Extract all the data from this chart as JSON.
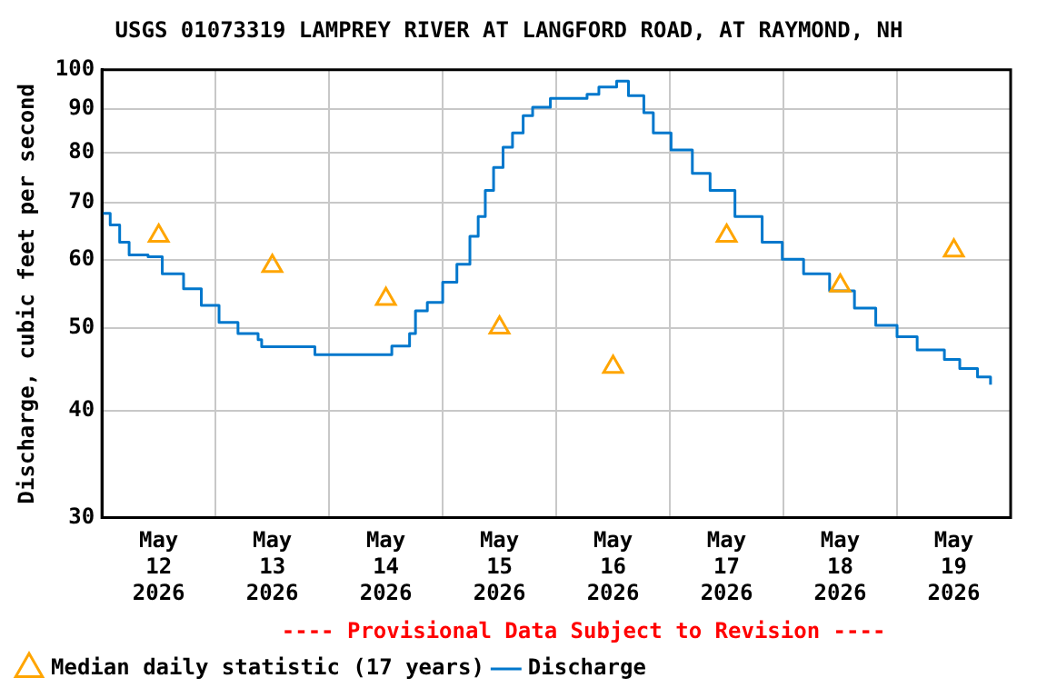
{
  "chart_data": {
    "type": "step",
    "title": "USGS 01073319 LAMPREY RIVER AT LANGFORD ROAD, AT RAYMOND, NH",
    "ylabel": "Discharge, cubic feet per second",
    "log": true,
    "ylim": [
      30,
      100
    ],
    "yticks": [
      30,
      40,
      50,
      60,
      70,
      80,
      90,
      100
    ],
    "xlim": [
      "2026-05-12T00:00",
      "2026-05-20T00:00"
    ],
    "xticks": [
      {
        "value": "2026-05-12T00:00",
        "label": null
      },
      {
        "value": "2026-05-12T12:00",
        "label": "May\n12\n2026"
      },
      {
        "value": "2026-05-13T00:00",
        "label": null
      },
      {
        "value": "2026-05-13T12:00",
        "label": "May\n13\n2026"
      },
      {
        "value": "2026-05-14T00:00",
        "label": null
      },
      {
        "value": "2026-05-14T12:00",
        "label": "May\n14\n2026"
      },
      {
        "value": "2026-05-15T00:00",
        "label": null
      },
      {
        "value": "2026-05-15T12:00",
        "label": "May\n15\n2026"
      },
      {
        "value": "2026-05-16T00:00",
        "label": null
      },
      {
        "value": "2026-05-16T12:00",
        "label": "May\n16\n2026"
      },
      {
        "value": "2026-05-17T00:00",
        "label": null
      },
      {
        "value": "2026-05-17T12:00",
        "label": "May\n17\n2026"
      },
      {
        "value": "2026-05-18T00:00",
        "label": null
      },
      {
        "value": "2026-05-18T12:00",
        "label": "May\n18\n2026"
      },
      {
        "value": "2026-05-19T00:00",
        "label": null
      },
      {
        "value": "2026-05-19T12:00",
        "label": "May\n19\n2026"
      },
      {
        "value": "2026-05-20T00:00",
        "label": null
      }
    ],
    "grid": true,
    "legend": "bottom",
    "annotations": [
      "---- Provisional Data Subject to Revision ----"
    ],
    "series": [
      {
        "name": "Median daily statistic (17 years)",
        "type": "scatter",
        "marker": "triangle",
        "color": "#ffa500",
        "x": [
          "2026-05-12T12:00",
          "2026-05-13T12:00",
          "2026-05-14T12:00",
          "2026-05-15T12:00",
          "2026-05-16T12:00",
          "2026-05-17T12:00",
          "2026-05-18T12:00",
          "2026-05-19T12:00"
        ],
        "values": [
          64,
          59,
          54,
          50,
          45,
          64,
          56,
          61.5
        ]
      },
      {
        "name": "Discharge",
        "marker": "none",
        "color": "#0077cc",
        "x": [
          "2026-05-12T00:00",
          "2026-05-12T01:45",
          "2026-05-12T03:45",
          "2026-05-12T05:45",
          "2026-05-12T09:45",
          "2026-05-12T12:45",
          "2026-05-12T17:15",
          "2026-05-12T21:00",
          "2026-05-13T00:45",
          "2026-05-13T04:45",
          "2026-05-13T09:00",
          "2026-05-13T09:45",
          "2026-05-13T21:00",
          "2026-05-14T13:15",
          "2026-05-14T17:00",
          "2026-05-14T18:15",
          "2026-05-14T20:45",
          "2026-05-15T00:00",
          "2026-05-15T03:00",
          "2026-05-15T05:45",
          "2026-05-15T07:30",
          "2026-05-15T09:00",
          "2026-05-15T10:45",
          "2026-05-15T12:45",
          "2026-05-15T14:45",
          "2026-05-15T17:00",
          "2026-05-15T19:00",
          "2026-05-15T22:45",
          "2026-05-16T06:30",
          "2026-05-16T09:00",
          "2026-05-16T12:45",
          "2026-05-16T15:15",
          "2026-05-16T18:30",
          "2026-05-16T20:30",
          "2026-05-17T00:15",
          "2026-05-17T04:45",
          "2026-05-17T08:30",
          "2026-05-17T13:45",
          "2026-05-17T19:30",
          "2026-05-17T23:45",
          "2026-05-18T04:15",
          "2026-05-18T09:45",
          "2026-05-18T15:00",
          "2026-05-18T19:30",
          "2026-05-19T00:00",
          "2026-05-19T04:15",
          "2026-05-19T10:00",
          "2026-05-19T13:15",
          "2026-05-19T17:00",
          "2026-05-19T19:45"
        ],
        "values": [
          68,
          65.9,
          62.9,
          60.8,
          60.5,
          57.8,
          55.5,
          53.1,
          50.7,
          49.2,
          48.4,
          47.5,
          46.5,
          47.6,
          49.2,
          52.3,
          53.5,
          56.5,
          59.3,
          63.9,
          67.4,
          72.3,
          76.9,
          81.2,
          84.4,
          88.4,
          90.4,
          92.6,
          93.6,
          95.5,
          97,
          93.3,
          89.1,
          84.4,
          80.6,
          75.7,
          72.3,
          67.4,
          62.9,
          60.1,
          57.8,
          55.2,
          52.7,
          50.3,
          48.8,
          47.1,
          45.9,
          44.8,
          43.8,
          42.9
        ]
      }
    ]
  }
}
